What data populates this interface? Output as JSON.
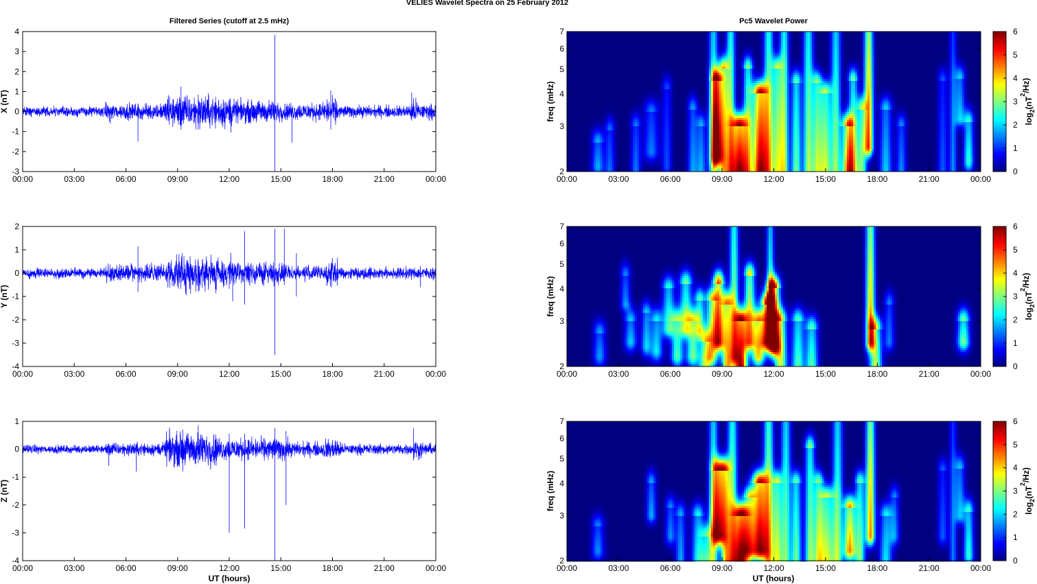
{
  "figure": {
    "title": "VELIES Wavelet Spectra on 25 February  2012",
    "left_column_title": "Filtered Series (cutoff at 2.5 mHz)",
    "right_column_title": "Pc5 Wavelet Power",
    "x_label": "UT (hours)",
    "freq_label": "freq (mHz)",
    "colorbar_label": "log2(nT2/Hz)",
    "colorbar_ticks": [
      "0",
      "1",
      "2",
      "3",
      "4",
      "5",
      "6"
    ],
    "time_ticks": [
      "00:00",
      "03:00",
      "06:00",
      "09:00",
      "12:00",
      "15:00",
      "18:00",
      "21:00",
      "00:00"
    ],
    "freq_ticks": [
      "2",
      "3",
      "4",
      "5",
      "6",
      "7"
    ]
  },
  "colors": {
    "trace": "#0000ff",
    "axes": "#000000",
    "grid_bg": "#ffffff"
  },
  "chart_data": [
    {
      "type": "line",
      "name": "X",
      "ylabel": "X (nT)",
      "xlim": [
        0,
        24
      ],
      "ylim": [
        -3,
        4
      ],
      "yticks": [
        -3,
        -2,
        -1,
        0,
        1,
        2,
        3,
        4
      ],
      "noise_base": 0.12,
      "activity": [
        [
          0,
          4.8,
          1
        ],
        [
          4.8,
          8.3,
          1.6
        ],
        [
          8.3,
          12.2,
          3.2
        ],
        [
          12.2,
          15,
          2.2
        ],
        [
          15,
          17.5,
          1.7
        ],
        [
          17.5,
          18.3,
          2.6
        ],
        [
          18.3,
          22.5,
          1.2
        ],
        [
          22.5,
          23,
          2.4
        ],
        [
          23,
          24,
          1.5
        ]
      ],
      "spikes": [
        [
          14.65,
          3.85,
          -3.0
        ],
        [
          6.7,
          0,
          -1.5
        ],
        [
          12.1,
          0,
          -1.05
        ],
        [
          15.65,
          0,
          -1.55
        ],
        [
          17.9,
          1.05,
          -0.9
        ],
        [
          22.6,
          0.95,
          -0.45
        ],
        [
          9.2,
          1.25,
          -0.9
        ],
        [
          10.2,
          0.85,
          -0.9
        ],
        [
          5.1,
          0,
          -0.6
        ]
      ]
    },
    {
      "type": "line",
      "name": "Y",
      "ylabel": "Y (nT)",
      "xlim": [
        0,
        24
      ],
      "ylim": [
        -4,
        2
      ],
      "yticks": [
        -4,
        -3,
        -2,
        -1,
        0,
        1,
        2
      ],
      "noise_base": 0.1,
      "activity": [
        [
          0,
          4.8,
          1
        ],
        [
          4.8,
          8.3,
          1.8
        ],
        [
          8.3,
          12.3,
          3.2
        ],
        [
          12.3,
          15.2,
          2.2
        ],
        [
          15.2,
          17.6,
          1.5
        ],
        [
          17.6,
          18.3,
          2.7
        ],
        [
          18.3,
          24,
          1.2
        ]
      ],
      "spikes": [
        [
          14.65,
          1.9,
          -3.5
        ],
        [
          12.9,
          1.8,
          -1.35
        ],
        [
          12.2,
          0,
          -1.2
        ],
        [
          15.2,
          1.9,
          -0.5
        ],
        [
          15.9,
          0.85,
          -1.0
        ],
        [
          6.7,
          1.15,
          -0.8
        ],
        [
          9.5,
          0,
          -0.95
        ],
        [
          23.1,
          0.3,
          -0.6
        ]
      ]
    },
    {
      "type": "line",
      "name": "Z",
      "ylabel": "Z (nT)",
      "xlim": [
        0,
        24
      ],
      "ylim": [
        -4,
        1
      ],
      "yticks": [
        -4,
        -3,
        -2,
        -1,
        0,
        1
      ],
      "noise_base": 0.07,
      "activity": [
        [
          0,
          4.8,
          1
        ],
        [
          4.8,
          8.3,
          1.6
        ],
        [
          8.3,
          11.3,
          4.0
        ],
        [
          11.3,
          15.5,
          2.7
        ],
        [
          15.5,
          17.5,
          1.8
        ],
        [
          17.5,
          18.5,
          2.5
        ],
        [
          18.5,
          22.7,
          1.3
        ],
        [
          22.7,
          23.2,
          2.3
        ],
        [
          23.2,
          24,
          1.4
        ]
      ],
      "spikes": [
        [
          14.65,
          0.75,
          -4.0
        ],
        [
          12.0,
          0.55,
          -3.0
        ],
        [
          12.9,
          0.55,
          -2.85
        ],
        [
          15.3,
          0.65,
          -2.0
        ],
        [
          10.2,
          0.85,
          -0.5
        ],
        [
          9.3,
          0.7,
          -0.8
        ],
        [
          6.6,
          0,
          -0.8
        ],
        [
          5.0,
          0,
          -0.6
        ],
        [
          22.7,
          0.75,
          -0.4
        ]
      ]
    },
    {
      "type": "heatmap",
      "name": "X power",
      "ylabel": "freq (mHz)",
      "yscale": "log",
      "xlim": [
        0,
        24
      ],
      "ylim": [
        2,
        7
      ],
      "clim": [
        0,
        6
      ],
      "blobs": [
        [
          1.8,
          2.1,
          2.6,
          0.25,
          1.8
        ],
        [
          2.5,
          2.0,
          2.9,
          0.2,
          1.4
        ],
        [
          4.0,
          2.0,
          3.0,
          0.2,
          1.5
        ],
        [
          4.9,
          2.4,
          3.4,
          0.3,
          1.5
        ],
        [
          5.8,
          2.1,
          4.2,
          0.2,
          1.2
        ],
        [
          7.3,
          2.0,
          3.5,
          0.2,
          1.7
        ],
        [
          7.8,
          2.0,
          3.0,
          0.2,
          1.8
        ],
        [
          8.5,
          2.0,
          7.0,
          0.18,
          3.0
        ],
        [
          8.7,
          2.3,
          4.5,
          0.22,
          5.3
        ],
        [
          9.1,
          2.0,
          5.0,
          0.2,
          3.8
        ],
        [
          9.5,
          2.0,
          7.0,
          0.18,
          3.5
        ],
        [
          10.0,
          2.0,
          3.0,
          0.3,
          6.0
        ],
        [
          10.5,
          2.0,
          5.0,
          0.2,
          3.2
        ],
        [
          11.2,
          2.0,
          4.0,
          0.3,
          5.9
        ],
        [
          11.7,
          2.0,
          7.0,
          0.2,
          3.5
        ],
        [
          12.2,
          2.0,
          5.0,
          0.2,
          3.3
        ],
        [
          12.6,
          2.0,
          7.0,
          0.18,
          3.5
        ],
        [
          13.3,
          2.0,
          4.4,
          0.2,
          3.0
        ],
        [
          14.0,
          2.0,
          7.0,
          0.2,
          3.3
        ],
        [
          14.5,
          2.0,
          4.4,
          0.2,
          3.0
        ],
        [
          15.0,
          2.0,
          4.0,
          0.25,
          3.5
        ],
        [
          15.6,
          2.0,
          7.0,
          0.2,
          3.0
        ],
        [
          16.3,
          2.0,
          3.0,
          0.25,
          4.5
        ],
        [
          16.6,
          2.0,
          4.5,
          0.2,
          3.0
        ],
        [
          17.1,
          2.0,
          3.5,
          0.2,
          3.0
        ],
        [
          17.5,
          2.5,
          7.0,
          0.18,
          4.8
        ],
        [
          18.5,
          2.0,
          3.5,
          0.25,
          2.0
        ],
        [
          19.4,
          2.0,
          3.0,
          0.2,
          1.6
        ],
        [
          21.8,
          2.0,
          4.5,
          0.2,
          1.3
        ],
        [
          22.4,
          2.0,
          7.0,
          0.15,
          1.6
        ],
        [
          22.8,
          3.2,
          4.6,
          0.2,
          2.0
        ],
        [
          23.3,
          2.2,
          3.1,
          0.2,
          2.6
        ]
      ]
    },
    {
      "type": "heatmap",
      "name": "Y power",
      "ylabel": "freq (mHz)",
      "yscale": "log",
      "xlim": [
        0,
        24
      ],
      "ylim": [
        2,
        7
      ],
      "clim": [
        0,
        6
      ],
      "blobs": [
        [
          1.9,
          2.2,
          2.7,
          0.25,
          1.7
        ],
        [
          3.4,
          3.5,
          4.5,
          0.2,
          1.6
        ],
        [
          3.7,
          2.5,
          3.0,
          0.25,
          2.0
        ],
        [
          4.6,
          2.4,
          3.2,
          0.2,
          2.0
        ],
        [
          5.2,
          2.3,
          3.0,
          0.25,
          2.2
        ],
        [
          5.9,
          2.8,
          4.0,
          0.25,
          2.6
        ],
        [
          6.4,
          2.2,
          3.0,
          0.25,
          2.8
        ],
        [
          6.9,
          2.8,
          4.2,
          0.25,
          3.0
        ],
        [
          7.3,
          2.2,
          3.0,
          0.25,
          3.0
        ],
        [
          7.7,
          2.8,
          3.6,
          0.2,
          2.8
        ],
        [
          8.0,
          2.0,
          2.5,
          0.25,
          3.0
        ],
        [
          8.4,
          2.2,
          3.6,
          0.25,
          3.5
        ],
        [
          8.8,
          2.5,
          4.2,
          0.22,
          4.8
        ],
        [
          9.3,
          2.0,
          3.5,
          0.22,
          4.2
        ],
        [
          9.7,
          2.2,
          7.0,
          0.18,
          3.5
        ],
        [
          10.1,
          2.0,
          3.0,
          0.25,
          5.8
        ],
        [
          10.6,
          2.5,
          4.5,
          0.22,
          4.0
        ],
        [
          11.1,
          2.2,
          3.0,
          0.25,
          4.0
        ],
        [
          11.6,
          2.5,
          3.5,
          0.25,
          4.5
        ],
        [
          12.0,
          2.4,
          4.0,
          0.25,
          5.8
        ],
        [
          12.4,
          2.0,
          3.0,
          0.25,
          3.5
        ],
        [
          11.8,
          3.0,
          7.0,
          0.15,
          2.8
        ],
        [
          13.4,
          2.0,
          3.0,
          0.25,
          2.8
        ],
        [
          14.2,
          2.0,
          2.8,
          0.25,
          2.8
        ],
        [
          17.6,
          2.5,
          7.0,
          0.18,
          4.5
        ],
        [
          17.9,
          2.0,
          2.8,
          0.25,
          3.5
        ],
        [
          18.7,
          2.5,
          3.5,
          0.2,
          1.5
        ],
        [
          23.0,
          2.5,
          3.0,
          0.25,
          3.0
        ]
      ]
    },
    {
      "type": "heatmap",
      "name": "Z power",
      "ylabel": "freq (mHz)",
      "yscale": "log",
      "xlim": [
        0,
        24
      ],
      "ylim": [
        2,
        7
      ],
      "clim": [
        0,
        6
      ],
      "blobs": [
        [
          1.8,
          2.2,
          2.7,
          0.25,
          1.6
        ],
        [
          4.9,
          3.0,
          4.0,
          0.2,
          1.8
        ],
        [
          6.0,
          2.5,
          3.2,
          0.2,
          1.6
        ],
        [
          6.6,
          2.0,
          3.0,
          0.2,
          1.8
        ],
        [
          7.6,
          2.0,
          3.0,
          0.25,
          2.3
        ],
        [
          8.1,
          2.0,
          2.5,
          0.25,
          2.3
        ],
        [
          8.5,
          2.0,
          7.0,
          0.18,
          3.0
        ],
        [
          8.8,
          2.5,
          4.5,
          0.25,
          5.0
        ],
        [
          9.2,
          2.0,
          4.5,
          0.2,
          3.8
        ],
        [
          9.6,
          2.0,
          7.0,
          0.2,
          3.5
        ],
        [
          10.1,
          2.0,
          3.0,
          0.3,
          6.0
        ],
        [
          10.6,
          2.2,
          3.5,
          0.25,
          3.5
        ],
        [
          11.2,
          2.2,
          4.0,
          0.3,
          5.8
        ],
        [
          11.7,
          2.0,
          7.0,
          0.2,
          3.8
        ],
        [
          12.2,
          2.0,
          4.0,
          0.2,
          3.5
        ],
        [
          12.7,
          2.0,
          7.0,
          0.2,
          3.0
        ],
        [
          13.3,
          2.0,
          4.0,
          0.2,
          3.0
        ],
        [
          14.1,
          2.0,
          5.5,
          0.2,
          3.2
        ],
        [
          14.6,
          2.0,
          4.0,
          0.2,
          3.0
        ],
        [
          15.1,
          2.0,
          3.5,
          0.3,
          3.5
        ],
        [
          15.7,
          2.0,
          7.0,
          0.2,
          3.0
        ],
        [
          16.4,
          2.2,
          3.2,
          0.25,
          4.5
        ],
        [
          17.0,
          2.0,
          4.0,
          0.2,
          3.0
        ],
        [
          17.6,
          2.5,
          7.0,
          0.18,
          4.5
        ],
        [
          18.5,
          2.0,
          3.0,
          0.25,
          2.2
        ],
        [
          19.0,
          2.5,
          3.5,
          0.2,
          1.6
        ],
        [
          21.8,
          2.5,
          4.5,
          0.2,
          1.3
        ],
        [
          22.4,
          2.0,
          7.0,
          0.15,
          1.5
        ],
        [
          22.8,
          3.0,
          4.6,
          0.2,
          1.9
        ],
        [
          23.3,
          2.1,
          3.1,
          0.2,
          2.6
        ]
      ]
    }
  ]
}
